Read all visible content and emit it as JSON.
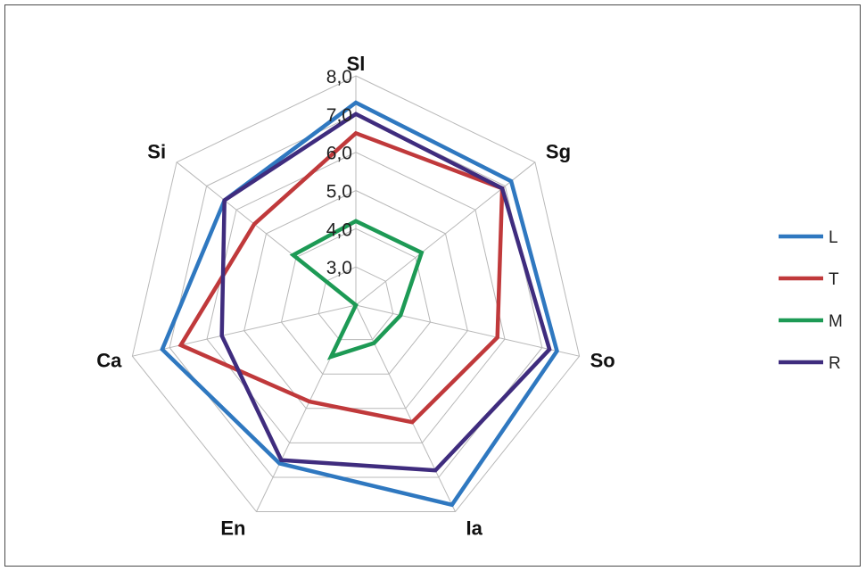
{
  "chart_data": {
    "type": "radar",
    "categories": [
      "Sl",
      "Sg",
      "So",
      "Ia",
      "En",
      "Ca",
      "Si"
    ],
    "axis_ticks": [
      "3,0",
      "4,0",
      "5,0",
      "6,0",
      "7,0",
      "8,0"
    ],
    "rlim": [
      2.0,
      8.0
    ],
    "grid": true,
    "legend_position": "right",
    "series": [
      {
        "name": "L",
        "color": "#2f78c0",
        "values": [
          7.3,
          7.2,
          7.4,
          7.8,
          6.6,
          7.2,
          6.4
        ]
      },
      {
        "name": "T",
        "color": "#c0393b",
        "values": [
          6.5,
          6.9,
          5.8,
          5.4,
          4.8,
          6.7,
          5.4
        ]
      },
      {
        "name": "M",
        "color": "#1d9a55",
        "values": [
          4.2,
          4.2,
          3.2,
          3.1,
          3.5,
          2.0,
          4.1
        ]
      },
      {
        "name": "R",
        "color": "#3f2c7e",
        "values": [
          7.0,
          6.9,
          7.2,
          6.8,
          6.5,
          5.6,
          6.4
        ]
      }
    ]
  }
}
